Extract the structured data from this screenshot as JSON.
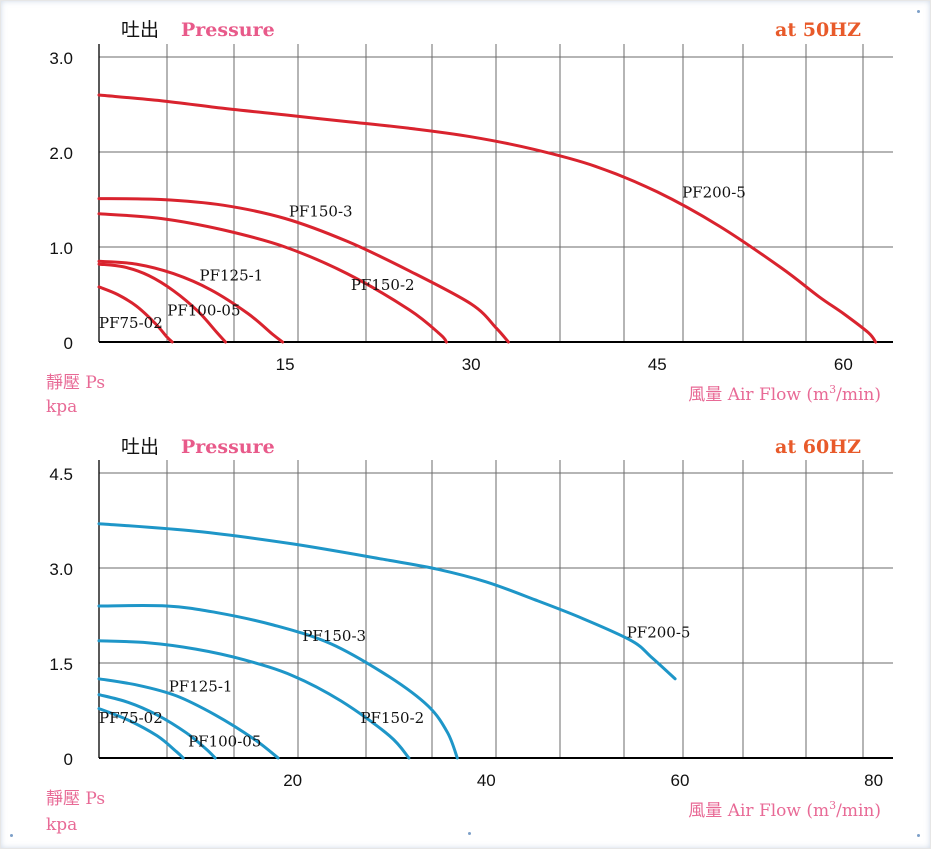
{
  "chart_data": [
    {
      "type": "line",
      "title_cn": "吐出",
      "title_en": "Pressure",
      "frequency": "at  50HZ",
      "ylabel_cn": "靜壓 Ps",
      "ylabel_unit": "kpa",
      "xlabel_prefix": "風量  Air Flow (m",
      "xlabel_sup": "3",
      "xlabel_suffix": "/min)",
      "xlim": [
        0,
        64
      ],
      "ylim": [
        0,
        3.0
      ],
      "xticks": [
        0,
        15,
        30,
        45,
        60
      ],
      "xtick_labels": [
        "",
        "15",
        "30",
        "45",
        "60"
      ],
      "yticks": [
        0,
        1.0,
        2.0,
        3.0
      ],
      "ytick_labels": [
        "0",
        "1.0",
        "2.0",
        "3.0"
      ],
      "origin_label": "0",
      "color": "#d9232e",
      "grid": true,
      "series": [
        {
          "name": "PF200-5",
          "label_at": [
            47,
            1.52
          ],
          "x": [
            0,
            5,
            10,
            15,
            20,
            25,
            30,
            35,
            40,
            45,
            50,
            55,
            58,
            60,
            62,
            62.6
          ],
          "y": [
            2.6,
            2.54,
            2.46,
            2.39,
            2.32,
            2.25,
            2.16,
            2.03,
            1.85,
            1.58,
            1.22,
            0.78,
            0.48,
            0.3,
            0.1,
            0
          ]
        },
        {
          "name": "PF150-3",
          "label_at": [
            15.3,
            1.32
          ],
          "x": [
            0,
            5,
            10,
            15,
            20,
            25,
            30,
            32,
            33
          ],
          "y": [
            1.51,
            1.5,
            1.44,
            1.3,
            1.06,
            0.75,
            0.4,
            0.15,
            0
          ]
        },
        {
          "name": "PF150-2",
          "label_at": [
            20.3,
            0.55
          ],
          "x": [
            0,
            5,
            10,
            15,
            20,
            25,
            27.5,
            28
          ],
          "y": [
            1.35,
            1.3,
            1.18,
            1.0,
            0.72,
            0.34,
            0.08,
            0
          ]
        },
        {
          "name": "PF125-1",
          "label_at": [
            8.1,
            0.65
          ],
          "x": [
            0,
            3,
            6,
            9,
            12,
            14,
            14.8
          ],
          "y": [
            0.85,
            0.82,
            0.72,
            0.55,
            0.3,
            0.08,
            0
          ]
        },
        {
          "name": "PF100-05",
          "label_at": [
            5.5,
            0.28
          ],
          "x": [
            0,
            2,
            4,
            6,
            8,
            9.5,
            10.2
          ],
          "y": [
            0.82,
            0.79,
            0.7,
            0.54,
            0.32,
            0.1,
            0
          ]
        },
        {
          "name": "PF75-02",
          "label_at": [
            0,
            0.15
          ],
          "x": [
            0,
            1.5,
            3,
            4.5,
            5.5,
            5.9
          ],
          "y": [
            0.58,
            0.5,
            0.38,
            0.2,
            0.05,
            0
          ]
        }
      ]
    },
    {
      "type": "line",
      "title_cn": "吐出",
      "title_en": "Pressure",
      "frequency": "at  60HZ",
      "ylabel_cn": "靜壓 Ps",
      "ylabel_unit": "kpa",
      "xlabel_prefix": "風量  Air Flow (m",
      "xlabel_sup": "3",
      "xlabel_suffix": "/min)",
      "xlim": [
        0,
        82
      ],
      "ylim": [
        0,
        4.5
      ],
      "xticks": [
        0,
        20,
        40,
        60,
        80
      ],
      "xtick_labels": [
        "",
        "20",
        "40",
        "60",
        "80"
      ],
      "yticks": [
        0,
        1.5,
        3.0,
        4.5
      ],
      "ytick_labels": [
        "0",
        "1.5",
        "3.0",
        "4.5"
      ],
      "origin_label": "0",
      "color": "#1e96c8",
      "grid": true,
      "series": [
        {
          "name": "PF200-5",
          "label_at": [
            54.5,
            1.9
          ],
          "x": [
            0,
            10,
            20,
            30,
            35,
            40,
            45,
            50,
            55,
            57,
            59.5
          ],
          "y": [
            3.7,
            3.58,
            3.38,
            3.12,
            2.98,
            2.78,
            2.5,
            2.2,
            1.85,
            1.6,
            1.25
          ]
        },
        {
          "name": "PF150-3",
          "label_at": [
            21,
            1.85
          ],
          "x": [
            0,
            7,
            12,
            18,
            24,
            30,
            34,
            36,
            37
          ],
          "y": [
            2.4,
            2.4,
            2.3,
            2.1,
            1.8,
            1.28,
            0.82,
            0.4,
            0
          ]
        },
        {
          "name": "PF150-2",
          "label_at": [
            27,
            0.55
          ],
          "x": [
            0,
            5,
            10,
            15,
            20,
            25,
            30,
            32
          ],
          "y": [
            1.85,
            1.82,
            1.72,
            1.55,
            1.3,
            0.9,
            0.35,
            0
          ]
        },
        {
          "name": "PF125-1",
          "label_at": [
            7.2,
            1.05
          ],
          "x": [
            0,
            4,
            8,
            12,
            16,
            18.5
          ],
          "y": [
            1.25,
            1.15,
            0.98,
            0.68,
            0.3,
            0
          ]
        },
        {
          "name": "PF100-05",
          "label_at": [
            9.2,
            0.18
          ],
          "x": [
            0,
            3,
            6,
            9,
            11,
            12
          ],
          "y": [
            1.0,
            0.88,
            0.68,
            0.4,
            0.15,
            0
          ]
        },
        {
          "name": "PF75-02",
          "label_at": [
            0,
            0.55
          ],
          "x": [
            0,
            3,
            6,
            8,
            8.7
          ],
          "y": [
            0.78,
            0.6,
            0.35,
            0.1,
            0
          ]
        }
      ]
    }
  ]
}
